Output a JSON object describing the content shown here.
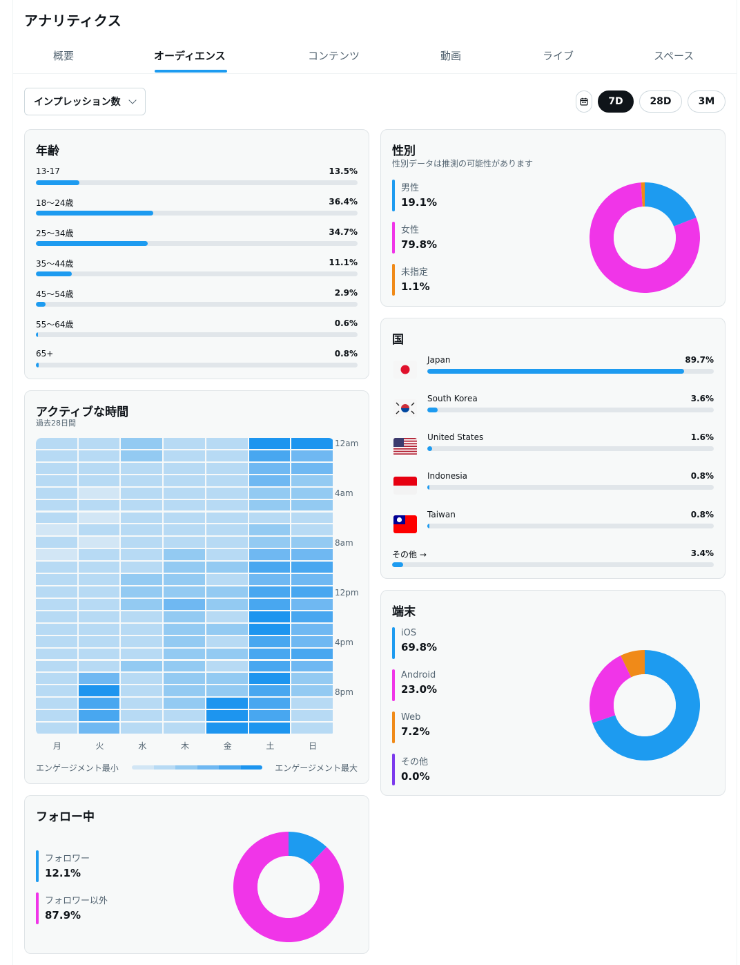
{
  "page": {
    "title": "アナリティクス"
  },
  "tabs": [
    {
      "label": "概要",
      "active": false
    },
    {
      "label": "オーディエンス",
      "active": true
    },
    {
      "label": "コンテンツ",
      "active": false
    },
    {
      "label": "動画",
      "active": false
    },
    {
      "label": "ライブ",
      "active": false
    },
    {
      "label": "スペース",
      "active": false
    }
  ],
  "toolbar": {
    "metric_select": "インプレッション数",
    "ranges": [
      {
        "label": "7D",
        "active": true
      },
      {
        "label": "28D",
        "active": false
      },
      {
        "label": "3M",
        "active": false
      }
    ],
    "calendar_icon": "calendar-icon"
  },
  "age": {
    "title": "年齢",
    "rows": [
      {
        "label": "13-17",
        "pct": "13.5%",
        "value": 13.5
      },
      {
        "label": "18〜24歳",
        "pct": "36.4%",
        "value": 36.4
      },
      {
        "label": "25〜34歳",
        "pct": "34.7%",
        "value": 34.7
      },
      {
        "label": "35〜44歳",
        "pct": "11.1%",
        "value": 11.1
      },
      {
        "label": "45〜54歳",
        "pct": "2.9%",
        "value": 2.9
      },
      {
        "label": "55〜64歳",
        "pct": "0.6%",
        "value": 0.6
      },
      {
        "label": "65+",
        "pct": "0.8%",
        "value": 0.8
      }
    ]
  },
  "gender": {
    "title": "性別",
    "subtitle": "性別データは推測の可能性があります",
    "items": [
      {
        "name": "男性",
        "pct": "19.1%",
        "value": 19.1,
        "color": "#1d9bf0"
      },
      {
        "name": "女性",
        "pct": "79.8%",
        "value": 79.8,
        "color": "#f035e8"
      },
      {
        "name": "未指定",
        "pct": "1.1%",
        "value": 1.1,
        "color": "#f08a18"
      }
    ]
  },
  "countries": {
    "title": "国",
    "rows": [
      {
        "name": "Japan",
        "pct": "89.7%",
        "value": 89.7,
        "flag": "japan-flag-icon"
      },
      {
        "name": "South Korea",
        "pct": "3.6%",
        "value": 3.6,
        "flag": "south-korea-flag-icon"
      },
      {
        "name": "United States",
        "pct": "1.6%",
        "value": 1.6,
        "flag": "united-states-flag-icon"
      },
      {
        "name": "Indonesia",
        "pct": "0.8%",
        "value": 0.8,
        "flag": "indonesia-flag-icon"
      },
      {
        "name": "Taiwan",
        "pct": "0.8%",
        "value": 0.8,
        "flag": "taiwan-flag-icon"
      }
    ],
    "other": {
      "name": "その他 →",
      "pct": "3.4%",
      "value": 3.4
    }
  },
  "active_time": {
    "title": "アクティブな時間",
    "subtitle": "過去28日間",
    "days": [
      "月",
      "火",
      "水",
      "木",
      "金",
      "土",
      "日"
    ],
    "hour_labels": [
      "12am",
      "4am",
      "8am",
      "12pm",
      "4pm",
      "8pm"
    ],
    "scale_min": "エンゲージメント最小",
    "scale_max": "エンゲージメント最大",
    "scale_colors": [
      "#d2e6f5",
      "#b7daf4",
      "#93caf2",
      "#6fb8f2",
      "#48a7f0",
      "#1d95ef"
    ],
    "intensity": [
      [
        1,
        1,
        2,
        1,
        1,
        5,
        5
      ],
      [
        1,
        1,
        2,
        1,
        1,
        4,
        3
      ],
      [
        1,
        1,
        1,
        1,
        1,
        3,
        3
      ],
      [
        1,
        1,
        1,
        1,
        1,
        3,
        2
      ],
      [
        1,
        0,
        1,
        1,
        1,
        2,
        2
      ],
      [
        1,
        1,
        1,
        1,
        1,
        2,
        2
      ],
      [
        1,
        0,
        1,
        1,
        1,
        1,
        1
      ],
      [
        0,
        1,
        1,
        1,
        1,
        2,
        1
      ],
      [
        1,
        0,
        1,
        1,
        1,
        2,
        2
      ],
      [
        0,
        1,
        1,
        2,
        1,
        3,
        3
      ],
      [
        1,
        1,
        1,
        2,
        2,
        4,
        4
      ],
      [
        1,
        1,
        2,
        2,
        1,
        3,
        3
      ],
      [
        1,
        1,
        2,
        2,
        2,
        4,
        4
      ],
      [
        1,
        1,
        2,
        3,
        2,
        4,
        3
      ],
      [
        1,
        1,
        1,
        2,
        1,
        5,
        4
      ],
      [
        1,
        1,
        1,
        2,
        2,
        5,
        3
      ],
      [
        1,
        1,
        1,
        2,
        1,
        4,
        3
      ],
      [
        1,
        1,
        1,
        2,
        2,
        4,
        4
      ],
      [
        1,
        1,
        2,
        2,
        1,
        4,
        3
      ],
      [
        1,
        3,
        1,
        2,
        2,
        5,
        2
      ],
      [
        1,
        5,
        1,
        2,
        2,
        4,
        2
      ],
      [
        1,
        4,
        1,
        2,
        5,
        4,
        1
      ],
      [
        1,
        4,
        1,
        1,
        5,
        4,
        1
      ],
      [
        1,
        3,
        1,
        1,
        5,
        5,
        1
      ]
    ]
  },
  "devices": {
    "title": "端末",
    "items": [
      {
        "name": "iOS",
        "pct": "69.8%",
        "value": 69.8,
        "color": "#1d9bf0"
      },
      {
        "name": "Android",
        "pct": "23.0%",
        "value": 23.0,
        "color": "#f035e8"
      },
      {
        "name": "Web",
        "pct": "7.2%",
        "value": 7.2,
        "color": "#f08a18"
      },
      {
        "name": "その他",
        "pct": "0.0%",
        "value": 0.0,
        "color": "#7c3aed"
      }
    ]
  },
  "following": {
    "title": "フォロー中",
    "items": [
      {
        "name": "フォロワー",
        "pct": "12.1%",
        "value": 12.1,
        "color": "#1d9bf0"
      },
      {
        "name": "フォロワー以外",
        "pct": "87.9%",
        "value": 87.9,
        "color": "#f035e8"
      }
    ]
  }
}
